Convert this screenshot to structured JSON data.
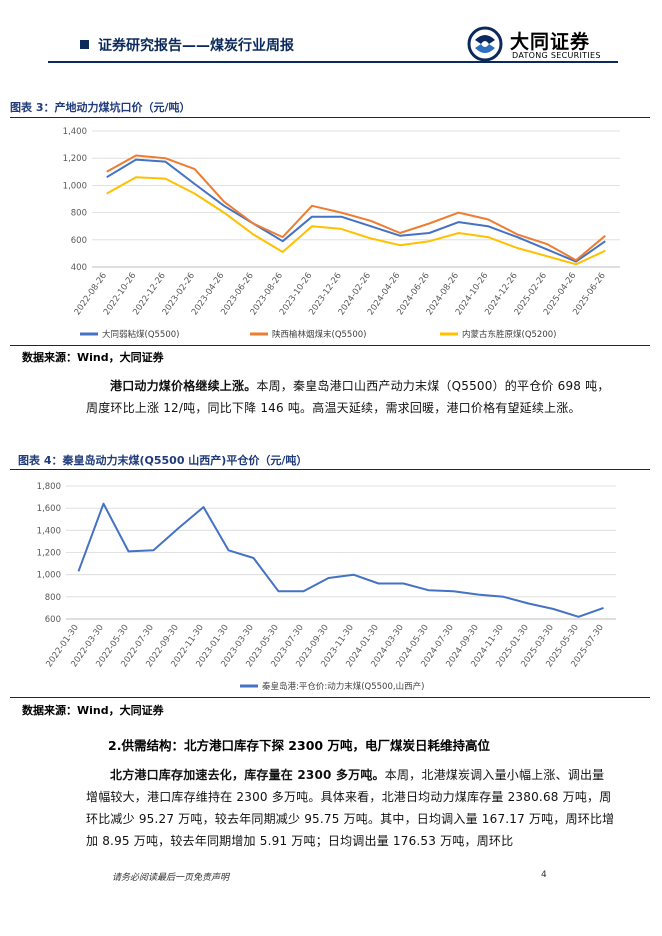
{
  "header": {
    "report_title": "证券研究报告——煤炭行业周报",
    "logo_cn": "大同证券",
    "logo_en": "DATONG SECURITIES"
  },
  "figure3": {
    "title": "图表 3：产地动力煤坑口价（元/吨）",
    "source": "数据来源：Wind，大同证券",
    "chart_data": {
      "type": "line",
      "title": "",
      "ylim": [
        400,
        1400
      ],
      "yticks": [
        "1,400",
        "1,200",
        "1,000",
        "800",
        "600",
        "400"
      ],
      "x": [
        "2022-08-26",
        "2022-10-26",
        "2022-12-26",
        "2023-02-26",
        "2023-04-26",
        "2023-06-26",
        "2023-08-26",
        "2023-10-26",
        "2023-12-26",
        "2024-02-26",
        "2024-04-26",
        "2024-06-26",
        "2024-08-26",
        "2024-10-26",
        "2024-12-26",
        "2025-02-26",
        "2025-04-26",
        "2025-06-26"
      ],
      "grid": true,
      "legend_position": "bottom",
      "series": [
        {
          "name": "大同弱粘煤(Q5500)",
          "color": "#4472c4",
          "values": [
            1060,
            1190,
            1175,
            1010,
            850,
            720,
            590,
            770,
            770,
            700,
            630,
            650,
            730,
            700,
            620,
            530,
            440,
            590
          ]
        },
        {
          "name": "陕西榆林烟煤末(Q5500)",
          "color": "#ed7d31",
          "values": [
            1100,
            1220,
            1200,
            1120,
            880,
            720,
            620,
            850,
            800,
            740,
            650,
            720,
            800,
            750,
            640,
            570,
            450,
            630
          ]
        },
        {
          "name": "内蒙古东胜原煤(Q5200)",
          "color": "#ffc000",
          "values": [
            940,
            1060,
            1050,
            940,
            800,
            640,
            510,
            700,
            680,
            610,
            560,
            590,
            650,
            620,
            540,
            480,
            420,
            520
          ]
        }
      ]
    }
  },
  "paragraph1": {
    "lead": "港口动力煤价格继续上涨。",
    "body": "本周，秦皇岛港口山西产动力末煤（Q5500）的平仓价 698 吨，周度环比上涨 12/吨，同比下降 146 吨。高温天延续，需求回暖，港口价格有望延续上涨。"
  },
  "figure4": {
    "title": "图表 4：秦皇岛动力末煤(Q5500 山西产)平仓价（元/吨）",
    "source": "数据来源：Wind，大同证券",
    "chart_data": {
      "type": "line",
      "title": "",
      "ylim": [
        600,
        1800
      ],
      "yticks": [
        "1,800",
        "1,600",
        "1,400",
        "1,200",
        "1,000",
        "800",
        "600"
      ],
      "x": [
        "2022-01-30",
        "2022-03-30",
        "2022-05-30",
        "2022-07-30",
        "2022-09-30",
        "2022-11-30",
        "2023-01-30",
        "2023-03-30",
        "2023-05-30",
        "2023-07-30",
        "2023-09-30",
        "2023-11-30",
        "2024-01-30",
        "2024-03-30",
        "2024-05-30",
        "2024-07-30",
        "2024-09-30",
        "2024-11-30",
        "2025-01-30",
        "2025-03-30",
        "2025-05-30",
        "2025-07-30"
      ],
      "grid": true,
      "legend_position": "bottom",
      "series": [
        {
          "name": "秦皇岛港:平仓价:动力末煤(Q5500,山西产)",
          "color": "#4472c4",
          "values": [
            1030,
            1640,
            1210,
            1220,
            1420,
            1610,
            1220,
            1150,
            850,
            850,
            970,
            1000,
            920,
            920,
            860,
            850,
            820,
            800,
            740,
            690,
            620,
            700
          ]
        }
      ]
    }
  },
  "section2": {
    "heading": "2.供需结构：北方港口库存下探 2300 万吨，电厂煤炭日耗维持高位"
  },
  "paragraph2": {
    "lead": "北方港口库存加速去化，库存量在 2300 多万吨。",
    "body": "本周，北港煤炭调入量小幅上涨、调出量增幅较大，港口库存维持在 2300 多万吨。具体来看，北港日均动力煤库存量 2380.68 万吨，周环比减少 95.27 万吨，较去年同期减少 95.75 万吨。其中，日均调入量 167.17 万吨，周环比增加 8.95 万吨，较去年同期增加 5.91 万吨；日均调出量 176.53 万吨，周环比"
  },
  "footer": {
    "disclaimer": "请务必阅读最后一页免责声明",
    "page_number": "4"
  },
  "colors": {
    "brand_navy": "#0b2a5b",
    "figure_title": "#1f3b7a"
  }
}
